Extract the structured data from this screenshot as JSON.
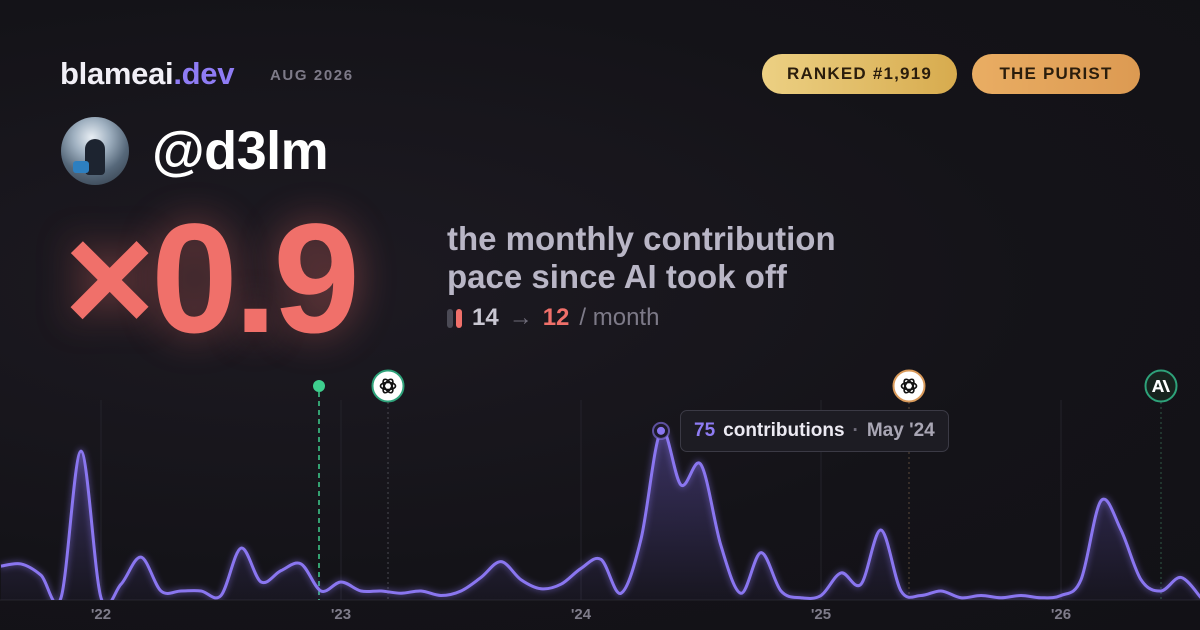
{
  "header": {
    "brand": "blameai",
    "brand_tld": ".dev",
    "date": "AUG 2026",
    "badges": [
      "RANKED #1,919",
      "THE PURIST"
    ]
  },
  "profile": {
    "username": "@d3lm"
  },
  "headline": {
    "multiplier": "×0.9",
    "description": [
      "the monthly contribution",
      "pace since AI took off"
    ],
    "before": 14,
    "arrow": "→",
    "after": 12,
    "unit": "/ month"
  },
  "chart_data": {
    "type": "area",
    "categories": [
      null,
      null,
      null,
      null,
      null,
      "'22",
      null,
      null,
      null,
      null,
      null,
      null,
      null,
      null,
      null,
      null,
      null,
      "'23",
      null,
      null,
      null,
      null,
      null,
      null,
      null,
      null,
      null,
      null,
      null,
      "'24",
      null,
      null,
      null,
      null,
      null,
      null,
      null,
      null,
      null,
      null,
      null,
      "'25",
      null,
      null,
      null,
      null,
      null,
      null,
      null,
      null,
      null,
      null,
      null,
      "'26",
      null,
      null,
      null,
      null,
      null,
      null,
      null
    ],
    "values": [
      15,
      16,
      11,
      1,
      66,
      1,
      7,
      19,
      4,
      4,
      4,
      2,
      23,
      8,
      13,
      16,
      4,
      8,
      4,
      4,
      3,
      4,
      2,
      4,
      10,
      17,
      9,
      5,
      7,
      14,
      18,
      3,
      27,
      75,
      51,
      60,
      24,
      3,
      21,
      4,
      1,
      2,
      12,
      7,
      31,
      4,
      2,
      4,
      1,
      2,
      1,
      2,
      1,
      2,
      9,
      44,
      31,
      9,
      4,
      10,
      1
    ],
    "color": "#8a76f0",
    "ylim": [
      0,
      90
    ],
    "tooltip": {
      "value": 75,
      "label": "contributions",
      "separator": "·",
      "date": "May '24"
    }
  }
}
